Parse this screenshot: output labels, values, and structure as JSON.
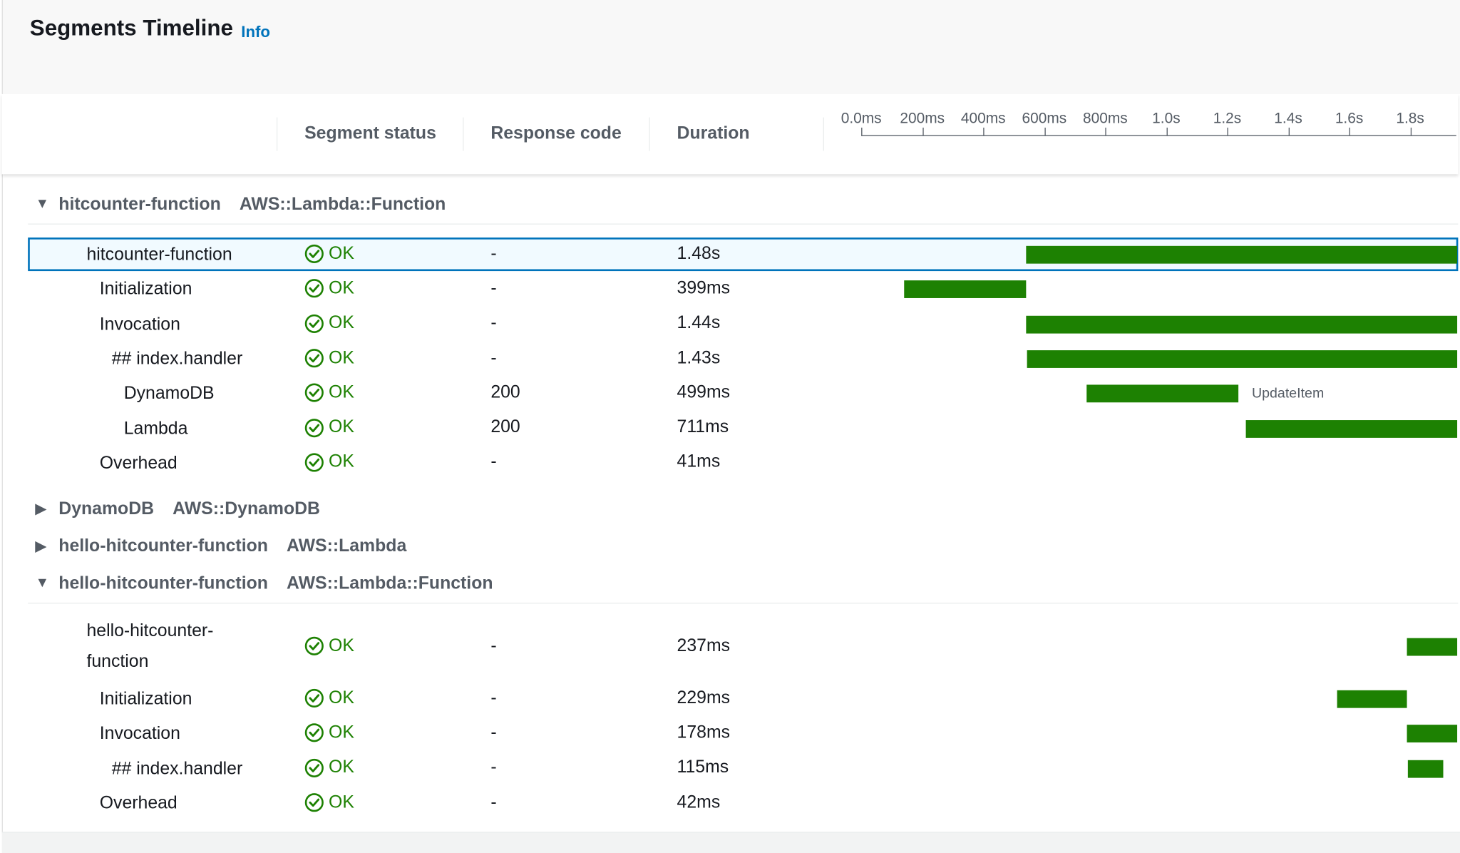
{
  "header": {
    "title": "Segments Timeline",
    "info_link": "Info"
  },
  "columns": {
    "status": "Segment status",
    "response": "Response code",
    "duration": "Duration"
  },
  "axis": {
    "unit": "ms",
    "ticks": [
      {
        "label": "0.0ms",
        "value": 0
      },
      {
        "label": "200ms",
        "value": 200
      },
      {
        "label": "400ms",
        "value": 400
      },
      {
        "label": "600ms",
        "value": 600
      },
      {
        "label": "800ms",
        "value": 800
      },
      {
        "label": "1.0s",
        "value": 1000
      },
      {
        "label": "1.2s",
        "value": 1200
      },
      {
        "label": "1.4s",
        "value": 1400
      },
      {
        "label": "1.6s",
        "value": 1600
      },
      {
        "label": "1.8s",
        "value": 1800
      }
    ],
    "range": [
      0,
      1950
    ]
  },
  "colors": {
    "bar": "#1d8102",
    "ok": "#1d8102",
    "selected_border": "#0073bb",
    "link": "#0073bb"
  },
  "groups": [
    {
      "name": "hitcounter-function",
      "type": "AWS::Lambda::Function",
      "expanded": true,
      "rows": [
        {
          "name": "hitcounter-function",
          "level": 0,
          "status": "OK",
          "response": "-",
          "duration": "1.48s",
          "start": 540,
          "ms": 1480,
          "selected": true
        },
        {
          "name": "Initialization",
          "level": 1,
          "status": "OK",
          "response": "-",
          "duration": "399ms",
          "start": 140,
          "ms": 399
        },
        {
          "name": "Invocation",
          "level": 1,
          "status": "OK",
          "response": "-",
          "duration": "1.44s",
          "start": 541,
          "ms": 1440
        },
        {
          "name": "## index.handler",
          "level": 2,
          "status": "OK",
          "response": "-",
          "duration": "1.43s",
          "start": 543,
          "ms": 1430
        },
        {
          "name": "DynamoDB",
          "level": 3,
          "status": "OK",
          "response": "200",
          "duration": "499ms",
          "start": 739,
          "ms": 499,
          "label": "UpdateItem"
        },
        {
          "name": "Lambda",
          "level": 3,
          "status": "OK",
          "response": "200",
          "duration": "711ms",
          "start": 1261,
          "ms": 711
        },
        {
          "name": "Overhead",
          "level": 1,
          "status": "OK",
          "response": "-",
          "duration": "41ms"
        }
      ]
    },
    {
      "name": "DynamoDB",
      "type": "AWS::DynamoDB",
      "expanded": false,
      "rows": []
    },
    {
      "name": "hello-hitcounter-function",
      "type": "AWS::Lambda",
      "expanded": false,
      "rows": []
    },
    {
      "name": "hello-hitcounter-function",
      "type": "AWS::Lambda::Function",
      "expanded": true,
      "rows": [
        {
          "name": "hello-hitcounter-function",
          "level": 0,
          "status": "OK",
          "response": "-",
          "duration": "237ms",
          "start": 1789,
          "ms": 237,
          "wrap": true
        },
        {
          "name": "Initialization",
          "level": 1,
          "status": "OK",
          "response": "-",
          "duration": "229ms",
          "start": 1560,
          "ms": 229
        },
        {
          "name": "Invocation",
          "level": 1,
          "status": "OK",
          "response": "-",
          "duration": "178ms",
          "start": 1789,
          "ms": 178
        },
        {
          "name": "## index.handler",
          "level": 2,
          "status": "OK",
          "response": "-",
          "duration": "115ms",
          "start": 1792,
          "ms": 115
        },
        {
          "name": "Overhead",
          "level": 1,
          "status": "OK",
          "response": "-",
          "duration": "42ms"
        }
      ]
    }
  ]
}
